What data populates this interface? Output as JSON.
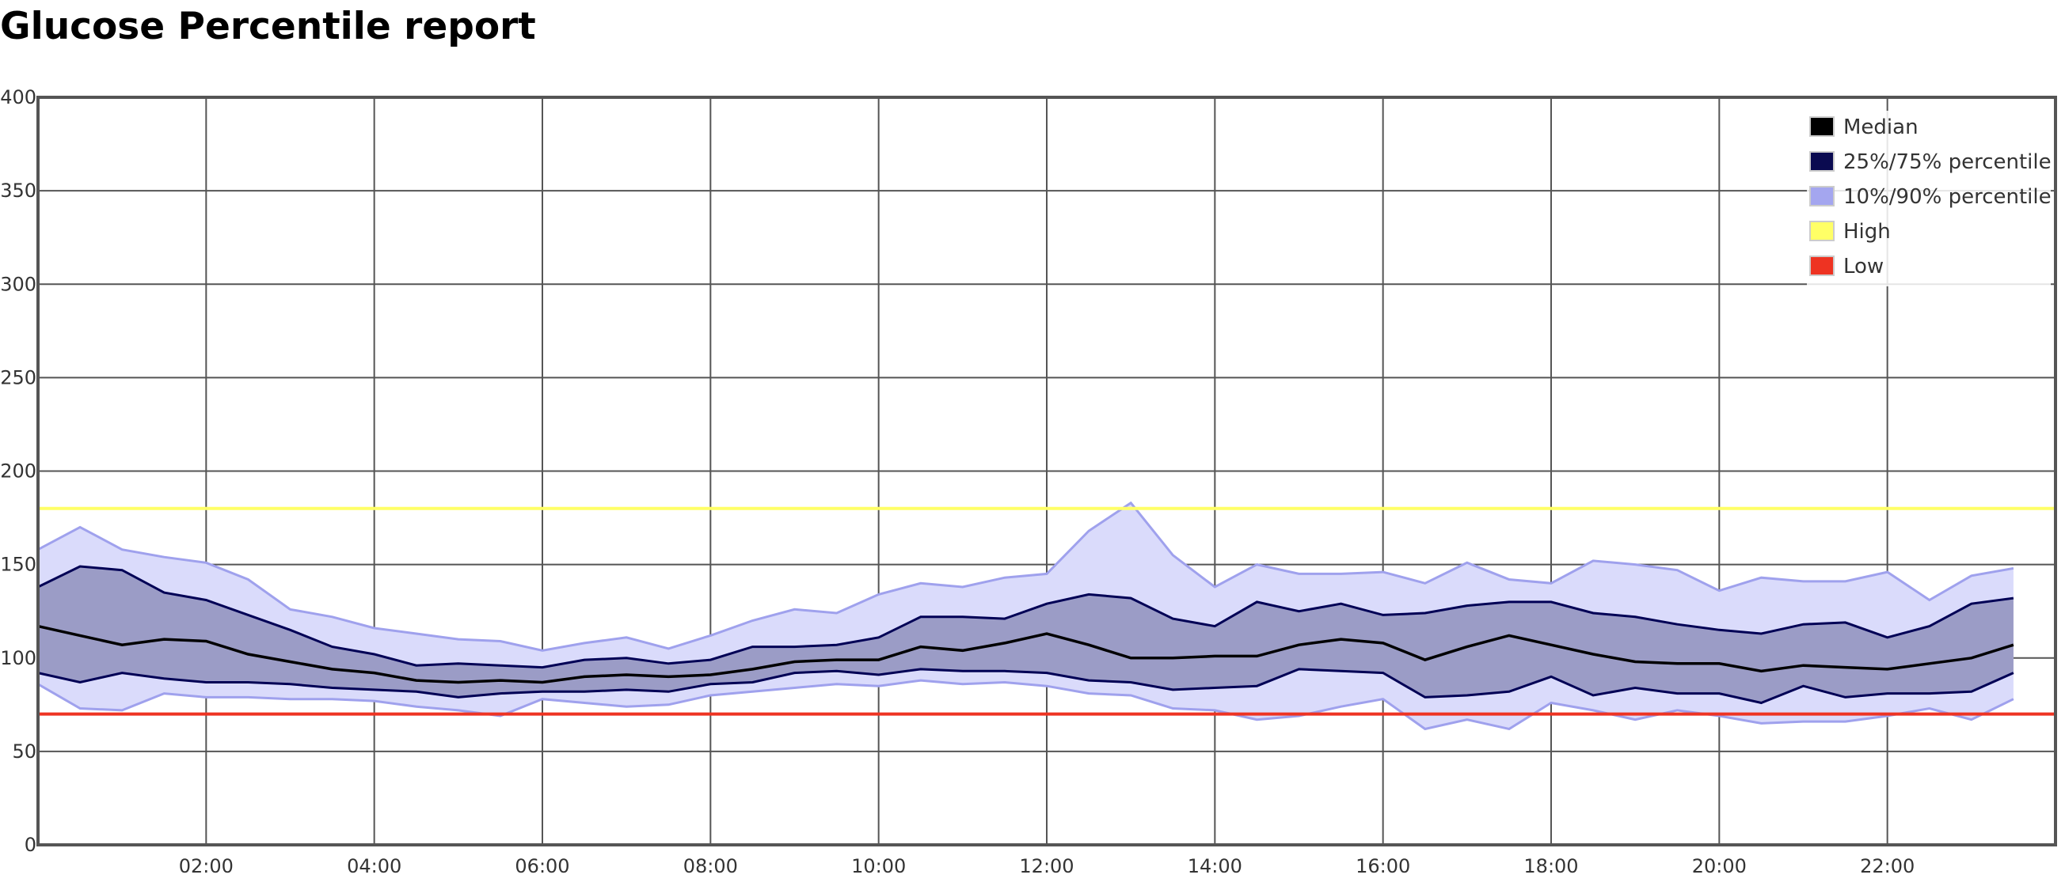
{
  "page_title": "Glucose Percentile report",
  "chart_data": {
    "type": "area",
    "title": "Glucose Percentile report",
    "xlabel": "",
    "ylabel": "",
    "x": [
      "00:00",
      "00:30",
      "01:00",
      "01:30",
      "02:00",
      "02:30",
      "03:00",
      "03:30",
      "04:00",
      "04:30",
      "05:00",
      "05:30",
      "06:00",
      "06:30",
      "07:00",
      "07:30",
      "08:00",
      "08:30",
      "09:00",
      "09:30",
      "10:00",
      "10:30",
      "11:00",
      "11:30",
      "12:00",
      "12:30",
      "13:00",
      "13:30",
      "14:00",
      "14:30",
      "15:00",
      "15:30",
      "16:00",
      "16:30",
      "17:00",
      "17:30",
      "18:00",
      "18:30",
      "19:00",
      "19:30",
      "20:00",
      "20:30",
      "21:00",
      "21:30",
      "22:00",
      "22:30",
      "23:00",
      "23:30"
    ],
    "x_tick_labels": [
      "02:00",
      "04:00",
      "06:00",
      "08:00",
      "10:00",
      "12:00",
      "14:00",
      "16:00",
      "18:00",
      "20:00",
      "22:00"
    ],
    "ylim": [
      0,
      400
    ],
    "y_tick_labels": [
      "0",
      "50",
      "100",
      "150",
      "200",
      "250",
      "300",
      "350",
      "400"
    ],
    "grid": true,
    "legend_position": "top-right",
    "series": [
      {
        "name": "Median",
        "color": "#000000",
        "values": [
          117,
          112,
          107,
          110,
          109,
          102,
          98,
          94,
          92,
          88,
          87,
          88,
          87,
          90,
          91,
          90,
          91,
          94,
          98,
          99,
          99,
          106,
          104,
          108,
          113,
          107,
          100,
          100,
          101,
          101,
          107,
          110,
          108,
          99,
          106,
          112,
          107,
          102,
          98,
          97,
          97,
          93,
          96,
          95,
          94,
          97,
          100,
          107
        ]
      },
      {
        "name": "25%/75% percentile",
        "color": "#000055",
        "fill": "#9b9cc6",
        "lower": [
          92,
          87,
          92,
          89,
          87,
          87,
          86,
          84,
          83,
          82,
          79,
          81,
          82,
          82,
          83,
          82,
          86,
          87,
          92,
          93,
          91,
          94,
          93,
          93,
          92,
          88,
          87,
          83,
          84,
          85,
          94,
          93,
          92,
          79,
          80,
          82,
          90,
          80,
          84,
          81,
          81,
          76,
          85,
          79,
          81,
          81,
          82,
          92
        ],
        "upper": [
          138,
          149,
          147,
          135,
          131,
          123,
          115,
          106,
          102,
          96,
          97,
          96,
          95,
          99,
          100,
          97,
          99,
          106,
          106,
          107,
          111,
          122,
          122,
          121,
          129,
          134,
          132,
          121,
          117,
          130,
          125,
          129,
          123,
          124,
          128,
          130,
          130,
          124,
          122,
          118,
          115,
          113,
          118,
          119,
          111,
          117,
          129,
          132
        ]
      },
      {
        "name": "10%/90% percentile",
        "color": "#9fa1ed",
        "fill": "#dadbfb",
        "lower": [
          86,
          73,
          72,
          81,
          79,
          79,
          78,
          78,
          77,
          74,
          72,
          69,
          78,
          76,
          74,
          75,
          80,
          82,
          84,
          86,
          85,
          88,
          86,
          87,
          85,
          81,
          80,
          73,
          72,
          67,
          69,
          74,
          78,
          62,
          67,
          62,
          76,
          72,
          67,
          72,
          69,
          65,
          66,
          66,
          69,
          73,
          67,
          78
        ],
        "upper": [
          158,
          170,
          158,
          154,
          151,
          142,
          126,
          122,
          116,
          113,
          110,
          109,
          104,
          108,
          111,
          105,
          112,
          120,
          126,
          124,
          134,
          140,
          138,
          143,
          145,
          168,
          183,
          155,
          138,
          150,
          145,
          145,
          146,
          140,
          151,
          142,
          140,
          152,
          150,
          147,
          136,
          143,
          141,
          141,
          146,
          131,
          144,
          148
        ]
      },
      {
        "name": "High",
        "color": "#ffff66",
        "value": 180
      },
      {
        "name": "Low",
        "color": "#ee3322",
        "value": 70
      }
    ]
  }
}
